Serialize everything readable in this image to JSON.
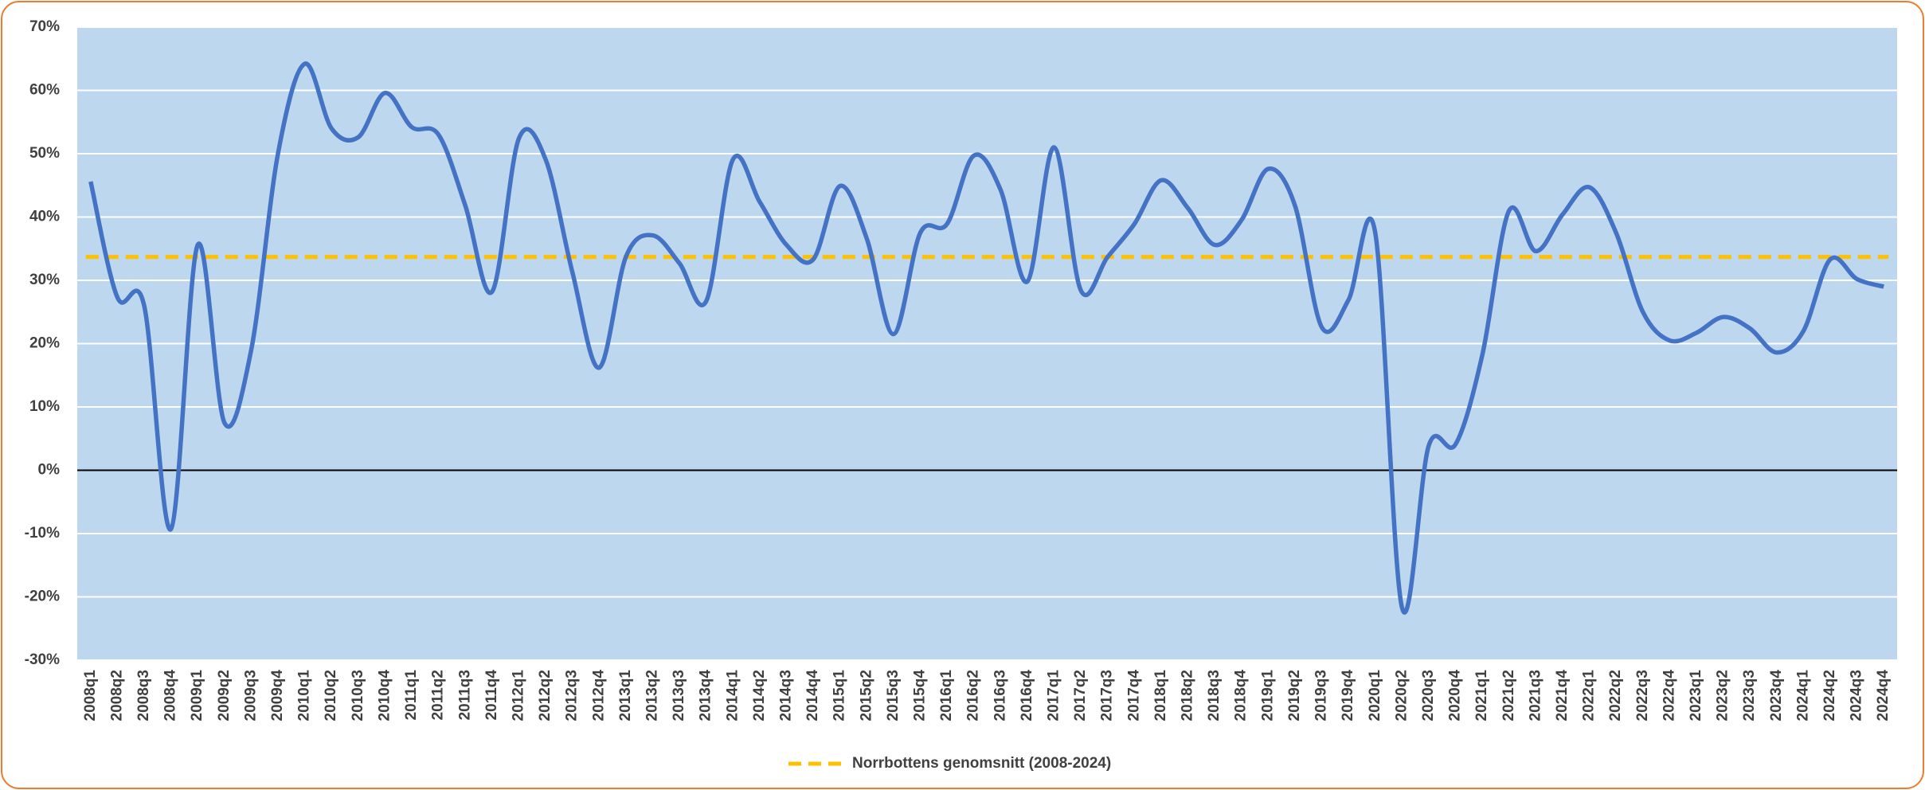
{
  "chart_data": {
    "type": "line",
    "categories": [
      "2008q1",
      "2008q2",
      "2008q3",
      "2008q4",
      "2009q1",
      "2009q2",
      "2009q3",
      "2009q4",
      "2010q1",
      "2010q2",
      "2010q3",
      "2010q4",
      "2011q1",
      "2011q2",
      "2011q3",
      "2011q4",
      "2012q1",
      "2012q2",
      "2012q3",
      "2012q4",
      "2013q1",
      "2013q2",
      "2013q3",
      "2013q4",
      "2014q1",
      "2014q2",
      "2014q3",
      "2014q4",
      "2015q1",
      "2015q2",
      "2015q3",
      "2015q4",
      "2016q1",
      "2016q2",
      "2016q3",
      "2016q4",
      "2017q1",
      "2017q2",
      "2017q3",
      "2017q4",
      "2018q1",
      "2018q2",
      "2018q3",
      "2018q4",
      "2019q1",
      "2019q2",
      "2019q3",
      "2019q4",
      "2020q1",
      "2020q2",
      "2020q3",
      "2020q4",
      "2021q1",
      "2021q2",
      "2021q3",
      "2021q4",
      "2022q1",
      "2022q2",
      "2022q3",
      "2022q4",
      "2023q1",
      "2023q2",
      "2023q3",
      "2023q4",
      "2024q1",
      "2024q2",
      "2024q3",
      "2024q4"
    ],
    "series": [
      {
        "color": "#4472c4",
        "values": [
          45.6,
          27.3,
          26,
          -9.3,
          35.6,
          7.5,
          19,
          50,
          64.2,
          54,
          52.6,
          59.6,
          54.2,
          53,
          41.8,
          28.2,
          52.4,
          49.1,
          31.3,
          16.2,
          33.7,
          37.1,
          32.7,
          26.7,
          49.1,
          42.4,
          35.6,
          33.3,
          44.9,
          36.6,
          21.5,
          37.5,
          38.9,
          49.7,
          44.3,
          29.8,
          51,
          28.4,
          33.7,
          38.9,
          45.8,
          41.4,
          35.6,
          39.5,
          47.6,
          41.8,
          22.6,
          26.9,
          37.5,
          -21.7,
          3.9,
          4.1,
          18.2,
          41,
          34.6,
          40.4,
          44.7,
          37.5,
          25,
          20.5,
          21.7,
          24.2,
          22.4,
          18.6,
          22,
          33.3,
          30.2,
          29
        ]
      }
    ],
    "reference_line": {
      "name": "Norrbottens genomsnitt (2008-2024)",
      "value": 33.7,
      "color": "#ffc000",
      "dashed": true
    },
    "ylim": [
      -30,
      70
    ],
    "yticks": [
      {
        "value": -30,
        "label": "-30%"
      },
      {
        "value": -20,
        "label": "-20%"
      },
      {
        "value": -10,
        "label": "-10%"
      },
      {
        "value": 0,
        "label": "0%"
      },
      {
        "value": 10,
        "label": "10%"
      },
      {
        "value": 20,
        "label": "20%"
      },
      {
        "value": 30,
        "label": "30%"
      },
      {
        "value": 40,
        "label": "40%"
      },
      {
        "value": 50,
        "label": "50%"
      },
      {
        "value": 60,
        "label": "60%"
      },
      {
        "value": 70,
        "label": "70%"
      }
    ],
    "grid": true,
    "legend": "bottom"
  }
}
